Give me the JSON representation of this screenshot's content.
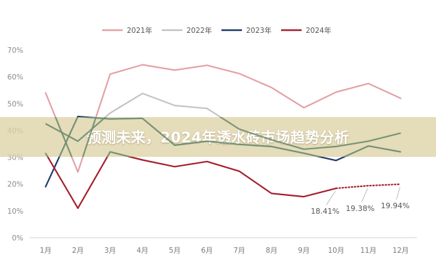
{
  "banner": {
    "title": "预测未来，2024年透水砖市场趋势分析"
  },
  "chart_data": {
    "type": "line",
    "categories": [
      "1月",
      "2月",
      "3月",
      "4月",
      "5月",
      "6月",
      "7月",
      "8月",
      "9月",
      "10月",
      "11月",
      "12月"
    ],
    "y_ticks": [
      "0%",
      "10%",
      "20%",
      "30%",
      "40%",
      "50%",
      "60%",
      "70%"
    ],
    "ylim": [
      0,
      70
    ],
    "y_unit": "%",
    "grid": false,
    "legend_position": "top-center",
    "series": [
      {
        "name": "2021年",
        "color": "#e4a1a6",
        "values": [
          54,
          24.5,
          61,
          64.5,
          62.5,
          64.3,
          61.2,
          56,
          48.5,
          54.3,
          57.5,
          52
        ]
      },
      {
        "name": "2022年",
        "color": "#c4c4c4",
        "values": [
          42.5,
          36,
          46.5,
          53.8,
          49.3,
          48.2,
          40.5,
          36.5,
          33,
          34,
          36,
          39
        ]
      },
      {
        "name": "2023年",
        "color": "#1f3a68",
        "values": [
          19,
          45.2,
          44.3,
          44.5,
          34.5,
          36,
          34.8,
          34,
          31.5,
          28.8,
          34.2,
          32
        ]
      },
      {
        "name": "2024年",
        "color": "#a5202c",
        "values": [
          31.5,
          11,
          32,
          29,
          26.5,
          28.4,
          24.8,
          16.5,
          15.3,
          18.41,
          19.38,
          19.94
        ],
        "projected_from_index": 9
      }
    ],
    "annotations": [
      {
        "category": "10月",
        "text": "18.41%"
      },
      {
        "category": "11月",
        "text": "19.38%"
      },
      {
        "category": "12月",
        "text": "19.94%"
      }
    ],
    "overlay_series_color": "#6f8e72"
  }
}
